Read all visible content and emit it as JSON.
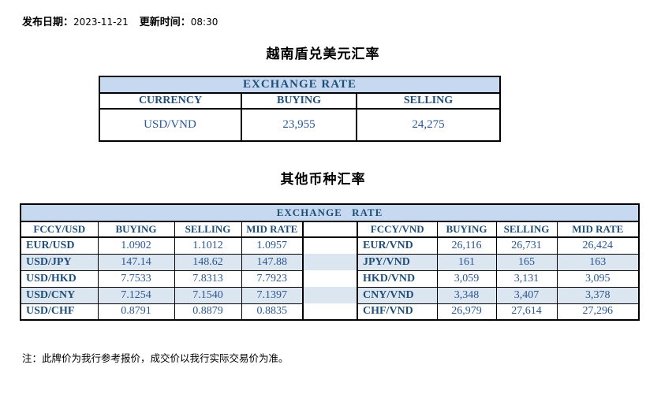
{
  "meta": {
    "publish_label": "发布日期：",
    "publish_date": "2023-11-21",
    "update_label": "更新时间：",
    "update_time": "08:30"
  },
  "usd_table": {
    "title": "越南盾兑美元汇率",
    "band": "EXCHANGE RATE",
    "columns": [
      "CURRENCY",
      "BUYING",
      "SELLING"
    ],
    "rows": [
      [
        "USD/VND",
        "23,955",
        "24,275"
      ]
    ]
  },
  "other_table": {
    "title": "其他币种汇率",
    "band": "EXCHANGE RATE",
    "left": {
      "columns": [
        "FCCY/USD",
        "BUYING",
        "SELLING",
        "MID RATE"
      ],
      "rows": [
        [
          "EUR/USD",
          "1.0902",
          "1.1012",
          "1.0957"
        ],
        [
          "USD/JPY",
          "147.14",
          "148.62",
          "147.88"
        ],
        [
          "USD/HKD",
          "7.7533",
          "7.8313",
          "7.7923"
        ],
        [
          "USD/CNY",
          "7.1254",
          "7.1540",
          "7.1397"
        ],
        [
          "USD/CHF",
          "0.8791",
          "0.8879",
          "0.8835"
        ]
      ]
    },
    "right": {
      "columns": [
        "FCCY/VND",
        "BUYING",
        "SELLING",
        "MID RATE"
      ],
      "rows": [
        [
          "EUR/VND",
          "26,116",
          "26,731",
          "26,424"
        ],
        [
          "JPY/VND",
          "161",
          "165",
          "163"
        ],
        [
          "HKD/VND",
          "3,059",
          "3,131",
          "3,095"
        ],
        [
          "CNY/VND",
          "3,348",
          "3,407",
          "3,378"
        ],
        [
          "CHF/VND",
          "26,979",
          "27,614",
          "27,296"
        ]
      ]
    }
  },
  "note": "注：此牌价为我行参考报价，成交价以我行实际交易价为准。",
  "colors": {
    "band_bg": "#c6d9f0",
    "stripe_bg": "#dce6f1",
    "header_text": "#1f4e79",
    "value_text": "#2a5694"
  }
}
